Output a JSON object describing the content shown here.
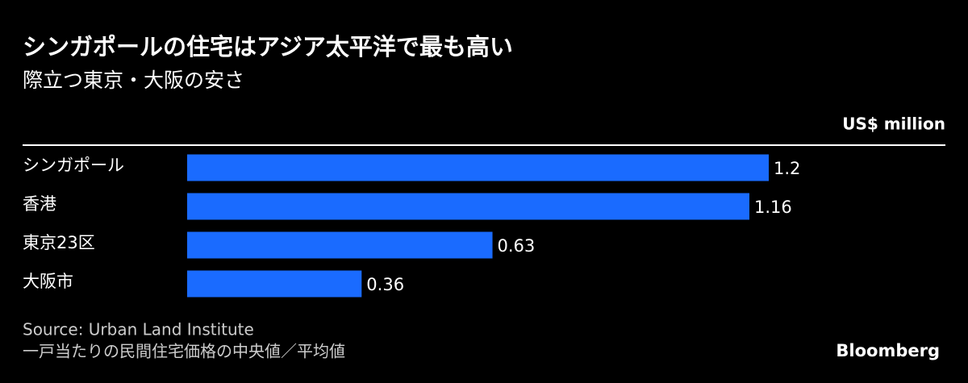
{
  "chart_data": {
    "type": "bar",
    "orientation": "horizontal",
    "title": "シンガポールの住宅はアジア太平洋で最も高い",
    "subtitle": "際立つ東京・大阪の安さ",
    "unit_label": "US$ million",
    "categories": [
      "シンガポール",
      "香港",
      "東京23区",
      "大阪市"
    ],
    "values": [
      1.2,
      1.16,
      0.63,
      0.36
    ],
    "color": "#1a6bff",
    "xlim": [
      0,
      1.2
    ],
    "source": "Source: Urban Land Institute",
    "note": "一戸当たりの民間住宅価格の中央値／平均値",
    "brand": "Bloomberg"
  }
}
